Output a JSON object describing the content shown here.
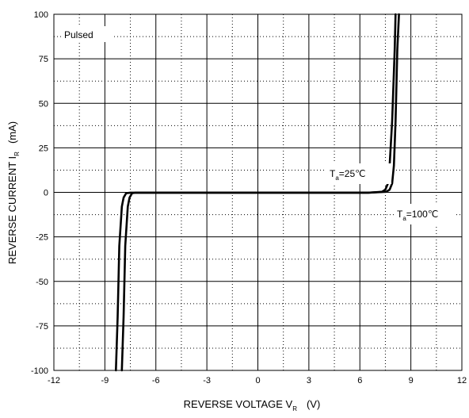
{
  "chart_data": {
    "type": "line",
    "xlabel": {
      "main": "REVERSE VOLTAGE   V",
      "sub": "R",
      "unit": "(V)"
    },
    "ylabel": {
      "main": "REVERSE CURRENT   I",
      "sub": "R",
      "unit": "(mA)"
    },
    "xlim": [
      -12,
      12
    ],
    "ylim": [
      -100,
      100
    ],
    "x_ticks": [
      -12,
      -9,
      -6,
      -3,
      0,
      3,
      6,
      9,
      12
    ],
    "y_ticks": [
      -100,
      -75,
      -50,
      -25,
      0,
      25,
      50,
      75,
      100
    ],
    "grid": true,
    "series": [
      {
        "name": "Ta=25℃",
        "x": [
          -8.0,
          -7.9,
          -7.8,
          -7.65,
          -7.55,
          -7.4,
          -7.2,
          -6.0,
          0,
          6.5,
          7.3,
          7.5,
          7.65,
          7.75,
          7.9,
          8.05,
          8.1
        ],
        "y": [
          -100,
          -70,
          -30,
          -8,
          -3,
          -0.5,
          -0.2,
          -0.2,
          -0.2,
          -0.2,
          0.3,
          1.5,
          5,
          15,
          40,
          80,
          100
        ]
      },
      {
        "name": "Ta=100℃",
        "x": [
          -8.35,
          -8.25,
          -8.15,
          -8.0,
          -7.9,
          -7.75,
          -7.5,
          -6.0,
          0,
          6.5,
          7.55,
          7.75,
          7.9,
          8.0,
          8.1,
          8.2,
          8.3
        ],
        "y": [
          -100,
          -70,
          -30,
          -8,
          -3,
          -0.5,
          -0.2,
          -0.2,
          -0.2,
          -0.2,
          0.3,
          1.5,
          5,
          15,
          40,
          80,
          100
        ]
      }
    ],
    "annotations": {
      "pulsed": "Pulsed",
      "t25": {
        "prefix": "T",
        "sub": "a",
        "rest": "=25℃"
      },
      "t100": {
        "prefix": "T",
        "sub": "a",
        "rest": "=100℃"
      }
    }
  }
}
